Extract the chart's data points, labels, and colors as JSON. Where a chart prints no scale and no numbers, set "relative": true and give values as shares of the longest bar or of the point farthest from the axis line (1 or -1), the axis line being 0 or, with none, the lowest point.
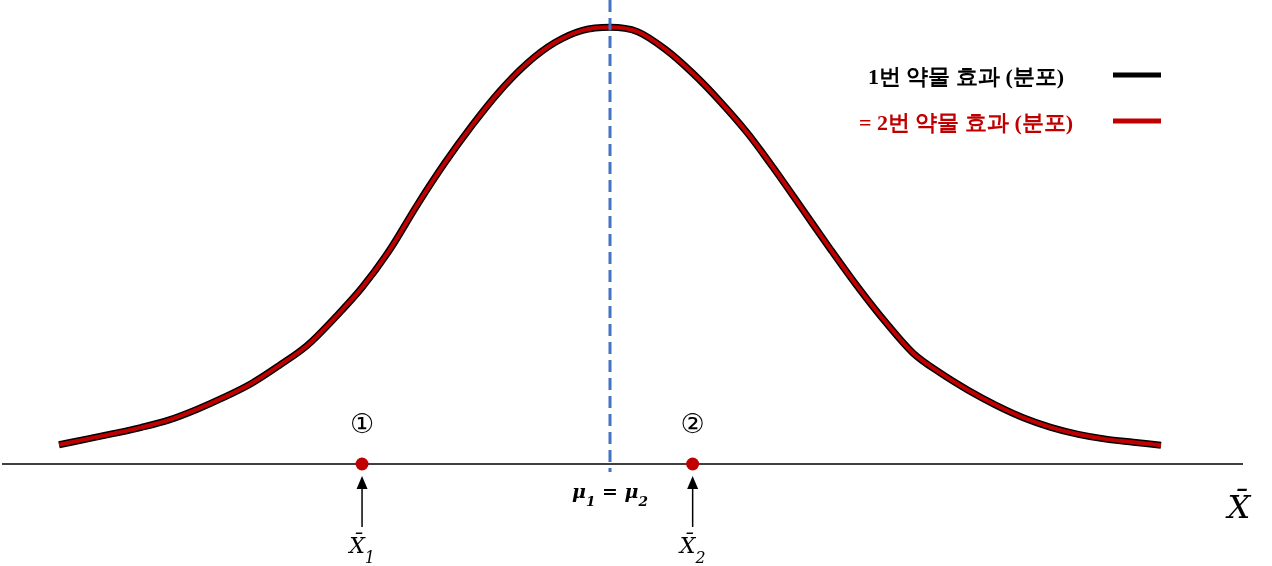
{
  "chart_data": {
    "type": "line",
    "relative": true,
    "xlabel": "X̄",
    "categories": [
      null,
      null,
      null,
      null,
      null,
      null,
      null,
      null,
      null,
      null,
      null,
      "X̄$_{1}$",
      null,
      null,
      null,
      null,
      null,
      null,
      null,
      null,
      "μ$_{1}$ = μ$_{2}$",
      null,
      null,
      "X̄$_{2}$",
      null,
      null,
      null,
      null,
      null,
      null,
      null,
      null,
      null,
      null,
      null,
      null,
      null,
      null,
      null,
      null,
      null
    ],
    "series": [
      {
        "name": "1번 약물 효과 (분포)",
        "color": "#000000",
        "values": [
          0.044,
          0.057,
          0.07,
          0.084,
          0.101,
          0.125,
          0.153,
          0.185,
          0.226,
          0.271,
          0.334,
          0.404,
          0.49,
          0.593,
          0.689,
          0.776,
          0.854,
          0.918,
          0.965,
          0.993,
          1,
          0.99,
          0.95,
          0.895,
          0.83,
          0.757,
          0.672,
          0.582,
          0.492,
          0.405,
          0.325,
          0.254,
          0.208,
          0.169,
          0.135,
          0.106,
          0.084,
          0.068,
          0.057,
          0.05,
          0.043
        ]
      },
      {
        "name": "= 2번 약물 효과 (분포)",
        "color": "#c00000",
        "values": [
          0.044,
          0.057,
          0.07,
          0.084,
          0.101,
          0.125,
          0.153,
          0.185,
          0.226,
          0.271,
          0.334,
          0.404,
          0.49,
          0.593,
          0.689,
          0.776,
          0.854,
          0.918,
          0.965,
          0.993,
          1,
          0.99,
          0.95,
          0.895,
          0.83,
          0.757,
          0.672,
          0.582,
          0.492,
          0.405,
          0.325,
          0.254,
          0.208,
          0.169,
          0.135,
          0.106,
          0.084,
          0.068,
          0.057,
          0.05,
          0.043
        ]
      },
      {
        "type": "scatter",
        "color": "#c00000",
        "marker": "circle",
        "x": [
          "X̄$_{1}$",
          "X̄$_{2}$"
        ],
        "values": [
          0,
          0
        ]
      }
    ],
    "ref_lines": [
      {
        "axis": "x",
        "value": "μ$_{1}$ = μ$_{2}$",
        "color": "#4472c4",
        "line_style": "dashed"
      }
    ],
    "annotations": [
      {
        "text": "①",
        "x": "X̄$_{1}$",
        "y": 0
      },
      {
        "text": "②",
        "x": "X̄$_{2}$",
        "y": 0
      }
    ],
    "legend": "top right"
  }
}
